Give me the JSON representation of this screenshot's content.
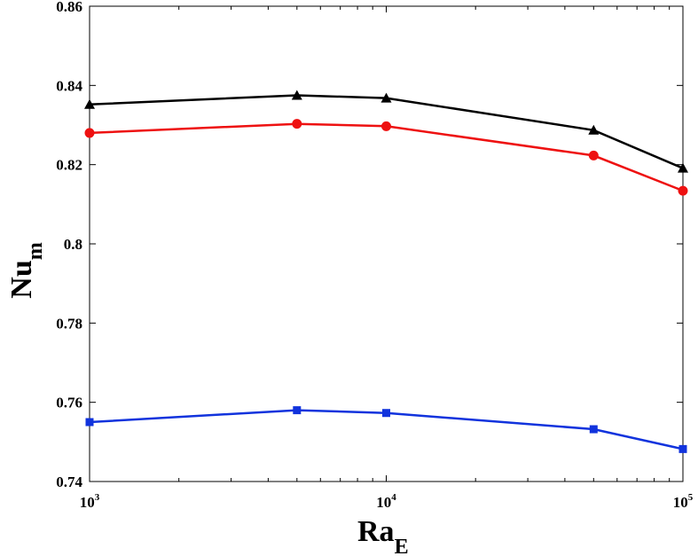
{
  "chart_data": {
    "type": "line",
    "xscale": "log",
    "x": [
      1000,
      5000,
      10000,
      50000,
      100000
    ],
    "xlim": [
      1000,
      100000
    ],
    "ylim": [
      0.74,
      0.86
    ],
    "yticks": [
      0.74,
      0.76,
      0.78,
      0.8,
      0.82,
      0.84,
      0.86
    ],
    "ytick_labels": [
      "0.74",
      "0.76",
      "0.78",
      "0.8",
      "0.82",
      "0.84",
      "0.86"
    ],
    "xtick_labels": [
      {
        "base": "10",
        "exp": "3"
      },
      {
        "base": "10",
        "exp": "4"
      },
      {
        "base": "10",
        "exp": "5"
      }
    ],
    "xlabel": {
      "main": "Ra",
      "sub": "E"
    },
    "ylabel": {
      "main": "Nu",
      "sub": "m"
    },
    "series": [
      {
        "name": "black-triangle",
        "color": "#000000",
        "marker": "triangle",
        "values": [
          0.8352,
          0.8375,
          0.8368,
          0.8287,
          0.8191
        ]
      },
      {
        "name": "red-circle",
        "color": "#ee1111",
        "marker": "circle",
        "values": [
          0.828,
          0.8303,
          0.8297,
          0.8223,
          0.8134
        ]
      },
      {
        "name": "blue-square",
        "color": "#1133dd",
        "marker": "square",
        "values": [
          0.755,
          0.758,
          0.7573,
          0.7532,
          0.7482
        ]
      }
    ]
  }
}
